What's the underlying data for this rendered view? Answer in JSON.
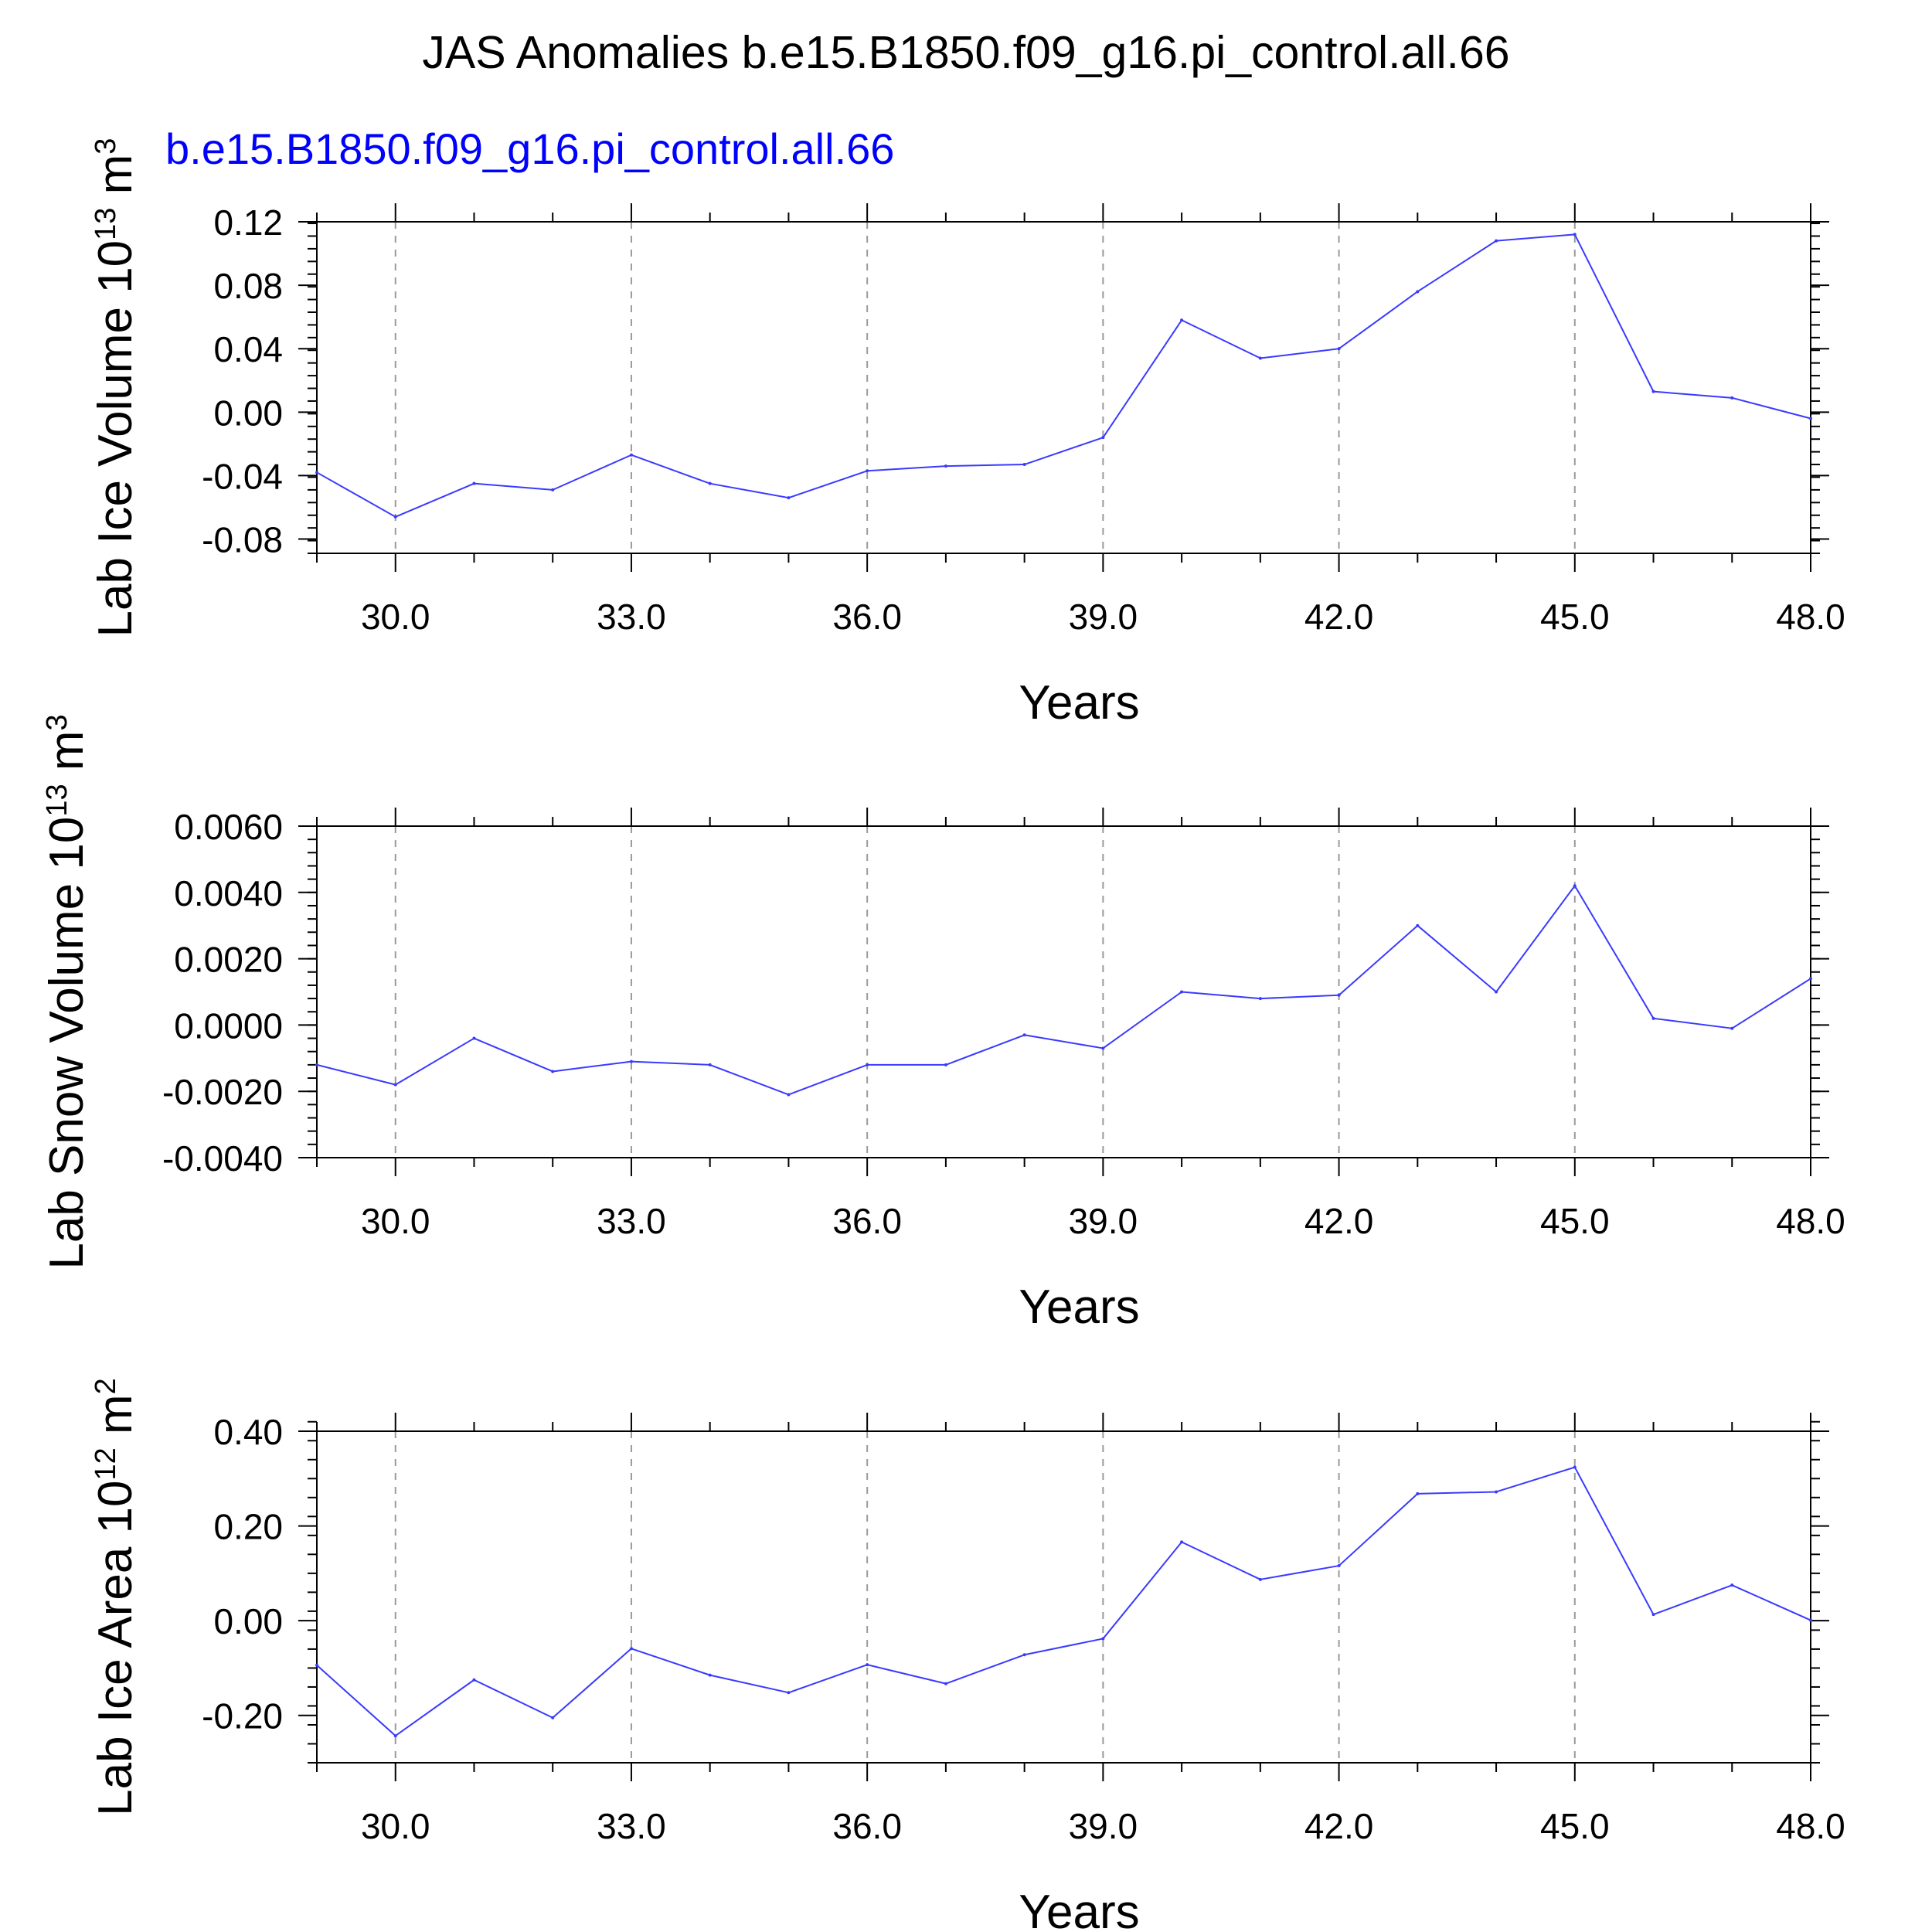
{
  "title": "JAS Anomalies b.e15.B1850.f09_g16.pi_control.all.66",
  "subtitle": "b.e15.B1850.f09_g16.pi_control.all.66",
  "colors": {
    "series": "#3a3aff",
    "subtitle": "#0000ff",
    "axis": "#000000",
    "grid": "#9a9a9a"
  },
  "chart_data": [
    {
      "type": "line",
      "xlabel": "Years",
      "ylabel_main": "Lab Ice Volume 10",
      "ylabel_exp": "13",
      "ylabel_unit": " m",
      "ylabel_unit_exp": "3",
      "xlim": [
        29,
        48
      ],
      "ylim": [
        -0.089,
        0.12
      ],
      "xticks": [
        30,
        33,
        36,
        39,
        42,
        45,
        48
      ],
      "xtick_labels": [
        "30.0",
        "33.0",
        "36.0",
        "39.0",
        "42.0",
        "45.0",
        "48.0"
      ],
      "yticks": [
        -0.08,
        -0.04,
        0.0,
        0.04,
        0.08,
        0.12
      ],
      "ytick_labels": [
        "-0.08",
        "-0.04",
        "0.00",
        "0.04",
        "0.08",
        "0.12"
      ],
      "yminor_step": 0.008,
      "x": [
        29,
        30,
        31,
        32,
        33,
        34,
        35,
        36,
        37,
        38,
        39,
        40,
        41,
        42,
        43,
        44,
        45,
        46,
        47,
        48
      ],
      "values": [
        -0.038,
        -0.066,
        -0.045,
        -0.049,
        -0.027,
        -0.045,
        -0.054,
        -0.037,
        -0.034,
        -0.033,
        -0.016,
        0.058,
        0.034,
        0.04,
        0.076,
        0.108,
        0.112,
        0.013,
        0.009,
        -0.004
      ],
      "grid": "vertical dashed at major x ticks"
    },
    {
      "type": "line",
      "xlabel": "Years",
      "ylabel_main": "Lab Snow Volume 10",
      "ylabel_exp": "13",
      "ylabel_unit": " m",
      "ylabel_unit_exp": "3",
      "xlim": [
        29,
        48
      ],
      "ylim": [
        -0.004,
        0.006
      ],
      "xticks": [
        30,
        33,
        36,
        39,
        42,
        45,
        48
      ],
      "xtick_labels": [
        "30.0",
        "33.0",
        "36.0",
        "39.0",
        "42.0",
        "45.0",
        "48.0"
      ],
      "yticks": [
        -0.004,
        -0.002,
        0.0,
        0.002,
        0.004,
        0.006
      ],
      "ytick_labels": [
        "-0.0040",
        "-0.0020",
        "0.0000",
        "0.0020",
        "0.0040",
        "0.0060"
      ],
      "yminor_step": 0.0004,
      "x": [
        29,
        30,
        31,
        32,
        33,
        34,
        35,
        36,
        37,
        38,
        39,
        40,
        41,
        42,
        43,
        44,
        45,
        46,
        47,
        48
      ],
      "values": [
        -0.0012,
        -0.0018,
        -0.0004,
        -0.0014,
        -0.0011,
        -0.0012,
        -0.0021,
        -0.0012,
        -0.0012,
        -0.0003,
        -0.0007,
        0.001,
        0.0008,
        0.0009,
        0.003,
        0.001,
        0.0042,
        0.0002,
        -0.0001,
        0.0014
      ],
      "grid": "vertical dashed at major x ticks"
    },
    {
      "type": "line",
      "xlabel": "Years",
      "ylabel_main": "Lab Ice Area 10",
      "ylabel_exp": "12",
      "ylabel_unit": " m",
      "ylabel_unit_exp": "2",
      "xlim": [
        29,
        48
      ],
      "ylim": [
        -0.3,
        0.4
      ],
      "xticks": [
        30,
        33,
        36,
        39,
        42,
        45,
        48
      ],
      "xtick_labels": [
        "30.0",
        "33.0",
        "36.0",
        "39.0",
        "42.0",
        "45.0",
        "48.0"
      ],
      "yticks": [
        -0.2,
        0.0,
        0.2,
        0.4
      ],
      "ytick_labels": [
        "-0.20",
        "0.00",
        "0.20",
        "0.40"
      ],
      "yminor_step": 0.04,
      "x": [
        29,
        30,
        31,
        32,
        33,
        34,
        35,
        36,
        37,
        38,
        39,
        40,
        41,
        42,
        43,
        44,
        45,
        46,
        47,
        48
      ],
      "values": [
        -0.094,
        -0.243,
        -0.125,
        -0.205,
        -0.059,
        -0.115,
        -0.152,
        -0.093,
        -0.133,
        -0.072,
        -0.038,
        0.166,
        0.087,
        0.116,
        0.268,
        0.272,
        0.324,
        0.013,
        0.075,
        0.001
      ],
      "grid": "vertical dashed at major x ticks"
    }
  ]
}
